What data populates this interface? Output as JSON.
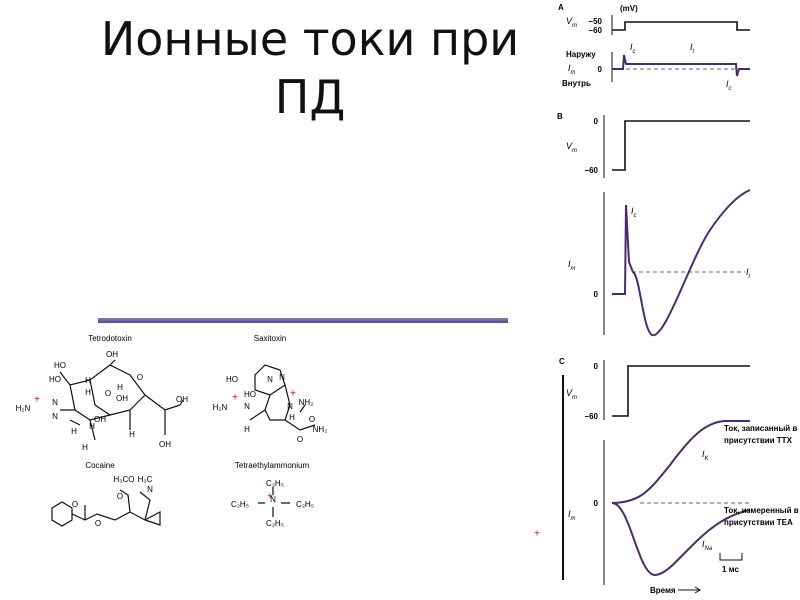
{
  "title": "Ионные токи при ПД",
  "molecules": [
    {
      "name": "Tetrodotoxin",
      "atoms": [
        "OH",
        "HO",
        "HO",
        "H",
        "O",
        "O",
        "OH",
        "H₂N",
        "N",
        "N",
        "H",
        "H",
        "OH",
        "OH",
        "OH",
        "H",
        "H",
        "H",
        "H",
        "+"
      ]
    },
    {
      "name": "Saxitoxin",
      "atoms": [
        "HO",
        "HO",
        "N",
        "N",
        "H₂N",
        "NH₂",
        "N",
        "H",
        "N",
        "H",
        "O",
        "NH₂",
        "O",
        "+",
        "+"
      ]
    },
    {
      "name": "Cocaine",
      "atoms": [
        "H₃CO",
        "O",
        "H₃C",
        "N",
        "O",
        "O"
      ]
    },
    {
      "name": "Tetraethylammonium",
      "atoms": [
        "C₂H₅",
        "C₂H₅",
        "N",
        "C₂H₅",
        "C₂H₅",
        "+"
      ]
    }
  ],
  "stray_mark": "+",
  "figure": {
    "panel_a": {
      "label": "A",
      "unit": "(mV)",
      "vm": {
        "main": "V",
        "sub": "m"
      },
      "v_ticks": [
        "−50",
        "−60"
      ],
      "outward": "Наружу",
      "im": {
        "main": "I",
        "sub": "m"
      },
      "zero": "0",
      "inward": "Внутрь",
      "ic1": {
        "main": "I",
        "sub": "c"
      },
      "il": {
        "main": "I",
        "sub": "l"
      },
      "ic2": {
        "main": "I",
        "sub": "c"
      }
    },
    "panel_b": {
      "label": "B",
      "v_zero": "0",
      "vm": {
        "main": "V",
        "sub": "m"
      },
      "v_rest": "−60",
      "ic": {
        "main": "I",
        "sub": "c"
      },
      "im": {
        "main": "I",
        "sub": "m"
      },
      "il": {
        "main": "I",
        "sub": "l"
      },
      "i_zero": "0"
    },
    "panel_c": {
      "label": "C",
      "v_zero": "0",
      "vm": {
        "main": "V",
        "sub": "m"
      },
      "v_rest": "−60",
      "ttx": [
        "Ток, записанный в",
        "присутствии TTX"
      ],
      "ik": {
        "main": "I",
        "sub": "K"
      },
      "im": {
        "main": "I",
        "sub": "m"
      },
      "i_zero": "0",
      "tea": [
        "Ток, измеренный в",
        "присутствии TEA"
      ],
      "ina": {
        "main": "I",
        "sub": "Na"
      },
      "scale": "1 мс",
      "time": "Время"
    }
  }
}
